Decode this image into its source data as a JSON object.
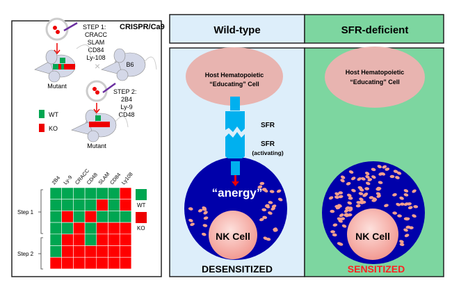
{
  "left_panel": {
    "title": "CRISPR/Ca9",
    "step1": {
      "label": "STEP 1:",
      "genes": [
        "CRACC",
        "SLAM",
        "CD84",
        "Ly-108"
      ]
    },
    "step2": {
      "label": "STEP 2:",
      "genes": [
        "2B4",
        "Ly-9",
        "CD48"
      ]
    },
    "mutant_label_1": "Mutant",
    "mutant_label_2": "Mutant",
    "b6_label": "B6",
    "cross_symbol": "×",
    "legend": {
      "wt": "WT",
      "ko": "KO"
    },
    "grid": {
      "columns": [
        "2B4",
        "Ly-9",
        "CRACC",
        "CD48",
        "SLAM",
        "CD84",
        "Ly108"
      ],
      "rows": [
        "GGGGGGR",
        "GGGGRGR",
        "GRGRGGG",
        "GGRGRRR",
        "GRRGRRR",
        "GRRRRRR",
        "RRRRRRR"
      ],
      "row_groups": [
        "Step 1",
        "Step 2"
      ],
      "legend": {
        "wt": "WT",
        "ko": "KO"
      }
    },
    "colors": {
      "wt": "#00a651",
      "ko": "#ff0000"
    }
  },
  "right_panel": {
    "wild_type": {
      "header": "Wild-type",
      "host_cell": [
        "Host Hematopoietic",
        "“Educating” Cell"
      ],
      "receptor_top": "SFR",
      "receptor_bottom": "SFR",
      "receptor_bottom_note": "(activating)",
      "anergy": "“anergy”",
      "nk_cell": "NK Cell",
      "status": "DESENSITIZED"
    },
    "sfr_deficient": {
      "header": "SFR-deficient",
      "host_cell": [
        "Host Hematopoietic",
        "“Educating” Cell"
      ],
      "nk_cell": "NK Cell",
      "status": "SENSITIZED"
    },
    "colors": {
      "wt_bg": "#ddeefa",
      "sfr_bg": "#7dd6a0",
      "nk_outer": "#0000aa",
      "host": "#e8b4b0",
      "receptor": "#00b0ef",
      "sensitized": "#ff2020"
    }
  }
}
